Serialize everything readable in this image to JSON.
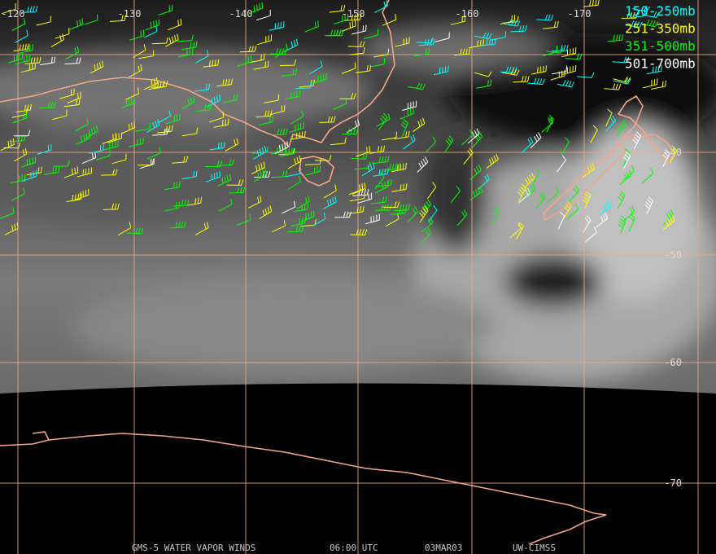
{
  "legend": [
    {
      "label": "150-250mb",
      "color": "#00ffff"
    },
    {
      "label": "251-350mb",
      "color": "#ffff00"
    },
    {
      "label": "351-500mb",
      "color": "#00ff00"
    },
    {
      "label": "501-700mb",
      "color": "#ffffff"
    }
  ],
  "graticule": {
    "longitudes": [
      -120,
      -130,
      -140,
      -150,
      -160,
      -170
    ],
    "latitudes": [
      -40,
      -50,
      -60,
      -70
    ]
  },
  "footer": {
    "product": "GMS-5 WATER VAPOR WINDS",
    "time": "06:00 UTC",
    "date": "03MAR03",
    "source": "UW-CIMSS"
  }
}
